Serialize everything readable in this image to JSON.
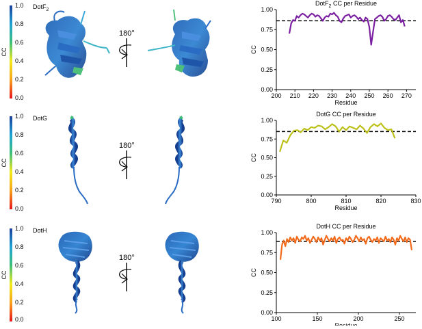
{
  "panels": [
    {
      "protein_label": "DotF",
      "protein_sub": "2",
      "rotation_label": "180°",
      "colorbar": {
        "axis_label": "CC",
        "ticks": [
          "1.0",
          "0.8",
          "0.6",
          "0.4",
          "0.2",
          "0.0"
        ]
      },
      "structure_icons": [
        "dotf2-ribbon-structure",
        "dotf2-ribbon-structure-rotated"
      ]
    },
    {
      "protein_label": "DotG",
      "protein_sub": "",
      "rotation_label": "180°",
      "colorbar": {
        "axis_label": "CC",
        "ticks": [
          "1.0",
          "0.8",
          "0.6",
          "0.4",
          "0.2",
          "0.0"
        ]
      },
      "structure_icons": [
        "dotg-helix-structure",
        "dotg-helix-structure-rotated"
      ]
    },
    {
      "protein_label": "DotH",
      "protein_sub": "",
      "rotation_label": "180°",
      "colorbar": {
        "axis_label": "CC",
        "ticks": [
          "1.0",
          "0.8",
          "0.6",
          "0.4",
          "0.2",
          "0.0"
        ]
      },
      "structure_icons": [
        "doth-ribbon-structure",
        "doth-ribbon-structure-rotated"
      ]
    }
  ],
  "colors": {
    "colorbar_stops": [
      "#e8141c",
      "#f7a21a",
      "#f2ea1c",
      "#3fbf7a",
      "#1ea3d6",
      "#1b3f9a"
    ],
    "dotf2_line": "#7b1fa2",
    "dotg_line": "#bcc11a",
    "doth_line": "#f26a1b",
    "threshold": "#000000"
  },
  "chart_data": [
    {
      "type": "line",
      "title": "DotF",
      "title_sub": "2",
      "title_rest": " CC per Residue",
      "xlabel": "Residue",
      "ylabel": "CC",
      "xlim": [
        200,
        275
      ],
      "ylim": [
        0,
        1
      ],
      "xticks": [
        200,
        210,
        220,
        230,
        240,
        250,
        260,
        270
      ],
      "yticks": [
        "0.00",
        "0.25",
        "0.50",
        "0.75",
        "1.00"
      ],
      "threshold": 0.86,
      "series": [
        {
          "color": "#7b1fa2",
          "x": [
            207,
            208,
            209,
            210,
            211,
            212,
            213,
            214,
            215,
            216,
            217,
            218,
            219,
            220,
            221,
            222,
            223,
            224,
            225,
            226,
            227,
            228,
            229,
            230,
            231,
            232,
            233,
            234,
            235,
            236,
            237,
            238,
            239,
            240,
            241,
            242,
            243,
            244,
            245,
            246,
            247,
            248,
            249,
            250,
            251,
            252,
            253,
            254,
            255,
            256,
            257,
            258,
            259,
            260,
            261,
            262,
            263,
            264,
            265,
            266,
            267,
            268,
            269
          ],
          "y": [
            0.7,
            0.83,
            0.87,
            0.86,
            0.92,
            0.9,
            0.93,
            0.95,
            0.94,
            0.92,
            0.9,
            0.93,
            0.95,
            0.94,
            0.91,
            0.93,
            0.92,
            0.89,
            0.86,
            0.9,
            0.92,
            0.91,
            0.95,
            0.94,
            0.96,
            0.93,
            0.91,
            0.86,
            0.84,
            0.89,
            0.92,
            0.93,
            0.94,
            0.9,
            0.92,
            0.93,
            0.91,
            0.88,
            0.9,
            0.87,
            0.85,
            0.9,
            0.88,
            0.78,
            0.56,
            0.72,
            0.88,
            0.9,
            0.92,
            0.93,
            0.91,
            0.86,
            0.88,
            0.92,
            0.93,
            0.91,
            0.88,
            0.87,
            0.9,
            0.93,
            0.84,
            0.87,
            0.79
          ]
        }
      ]
    },
    {
      "type": "line",
      "title": "DotG CC per Residue",
      "title_sub": "",
      "title_rest": "",
      "xlabel": "Residue",
      "ylabel": "CC",
      "xlim": [
        790,
        830
      ],
      "ylim": [
        0,
        1
      ],
      "xticks": [
        790,
        800,
        810,
        820,
        830
      ],
      "yticks": [
        "0.00",
        "0.25",
        "0.50",
        "0.75",
        "1.00"
      ],
      "threshold": 0.85,
      "series": [
        {
          "color": "#bcc11a",
          "x": [
            791,
            792,
            793,
            794,
            795,
            796,
            797,
            798,
            799,
            800,
            801,
            802,
            803,
            804,
            805,
            806,
            807,
            808,
            809,
            810,
            811,
            812,
            813,
            814,
            815,
            816,
            817,
            818,
            819,
            820,
            821,
            822,
            823,
            824
          ],
          "y": [
            0.58,
            0.73,
            0.7,
            0.8,
            0.86,
            0.87,
            0.84,
            0.89,
            0.87,
            0.91,
            0.9,
            0.93,
            0.92,
            0.88,
            0.91,
            0.95,
            0.92,
            0.85,
            0.91,
            0.87,
            0.92,
            0.9,
            0.88,
            0.93,
            0.89,
            0.83,
            0.91,
            0.95,
            0.92,
            0.96,
            0.9,
            0.87,
            0.88,
            0.76
          ]
        }
      ]
    },
    {
      "type": "line",
      "title": "DotH CC per Residue",
      "title_sub": "",
      "title_rest": "",
      "xlabel": "Residue",
      "ylabel": "CC",
      "xlim": [
        100,
        270
      ],
      "ylim": [
        0,
        1
      ],
      "xticks": [
        100,
        150,
        200,
        250
      ],
      "yticks": [
        "0.00",
        "0.25",
        "0.50",
        "0.75",
        "1.00"
      ],
      "threshold": 0.89,
      "series": [
        {
          "color": "#f26a1b",
          "x": [
            105,
            107,
            109,
            111,
            113,
            115,
            117,
            119,
            121,
            123,
            125,
            127,
            129,
            131,
            133,
            135,
            137,
            139,
            141,
            143,
            145,
            147,
            149,
            151,
            153,
            155,
            157,
            159,
            161,
            163,
            165,
            167,
            169,
            171,
            173,
            175,
            177,
            179,
            181,
            183,
            185,
            187,
            189,
            191,
            193,
            195,
            197,
            199,
            201,
            203,
            205,
            207,
            209,
            211,
            213,
            215,
            217,
            219,
            221,
            223,
            225,
            227,
            229,
            231,
            233,
            235,
            237,
            239,
            241,
            243,
            245,
            247,
            249,
            251,
            253,
            255,
            257,
            259,
            261,
            263,
            265
          ],
          "y": [
            0.66,
            0.85,
            0.9,
            0.83,
            0.92,
            0.88,
            0.94,
            0.9,
            0.93,
            0.87,
            0.95,
            0.91,
            0.89,
            0.94,
            0.92,
            0.96,
            0.9,
            0.93,
            0.87,
            0.91,
            0.95,
            0.92,
            0.88,
            0.94,
            0.9,
            0.93,
            0.85,
            0.91,
            0.96,
            0.92,
            0.89,
            0.93,
            0.9,
            0.95,
            0.87,
            0.92,
            0.94,
            0.9,
            0.91,
            0.86,
            0.93,
            0.9,
            0.95,
            0.92,
            0.88,
            0.91,
            0.96,
            0.93,
            0.89,
            0.94,
            0.9,
            0.92,
            0.86,
            0.93,
            0.95,
            0.91,
            0.88,
            0.92,
            0.9,
            0.94,
            0.87,
            0.93,
            0.91,
            0.89,
            0.95,
            0.9,
            0.92,
            0.88,
            0.94,
            0.91,
            0.85,
            0.93,
            0.9,
            0.96,
            0.92,
            0.89,
            0.94,
            0.88,
            0.93,
            0.91,
            0.78
          ]
        }
      ]
    }
  ]
}
